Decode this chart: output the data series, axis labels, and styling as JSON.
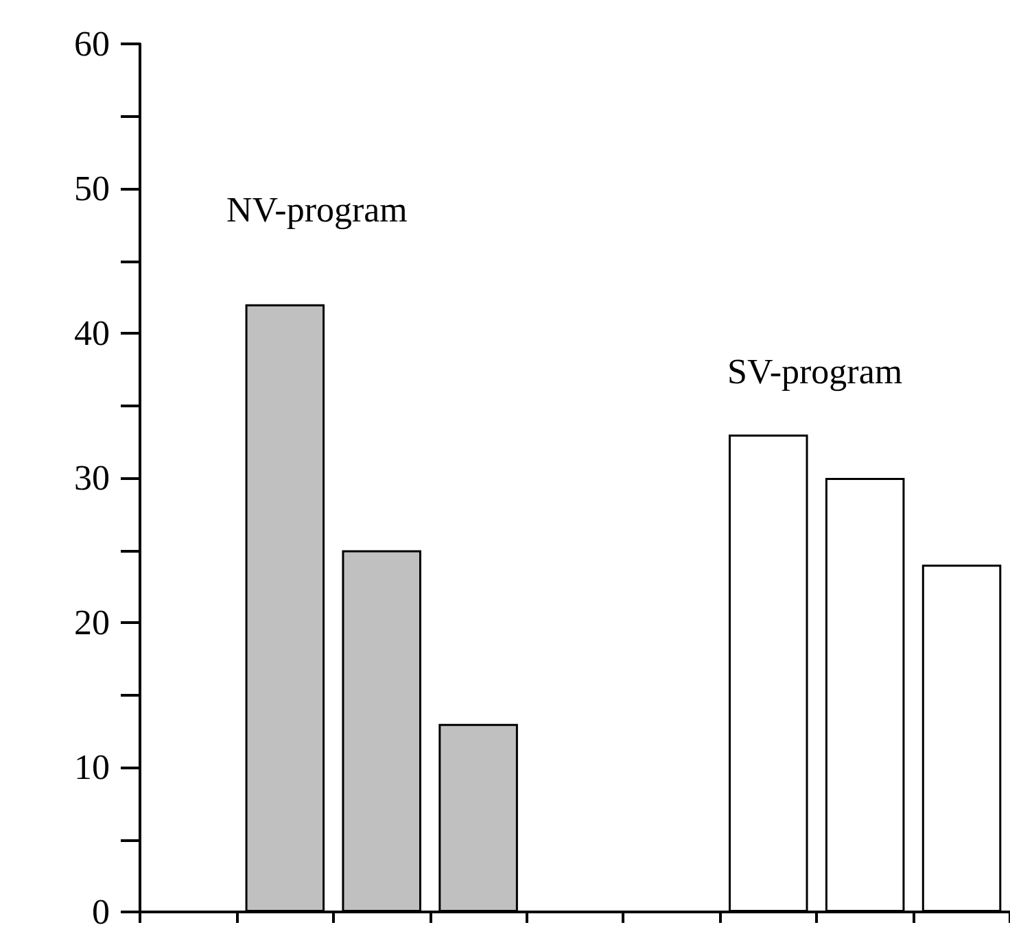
{
  "chart_data": {
    "type": "bar",
    "categories": [
      null,
      null,
      null,
      null,
      null,
      null,
      null,
      null,
      null
    ],
    "values": [
      null,
      42,
      25,
      13,
      null,
      null,
      33,
      30,
      24
    ],
    "colors": [
      null,
      "#c0c0c0",
      "#c0c0c0",
      "#c0c0c0",
      null,
      null,
      "#ffffff",
      "#ffffff",
      "#ffffff"
    ],
    "ylim": [
      0,
      60
    ],
    "yticks": [
      0,
      {
        "value": 5,
        "label": null
      },
      10,
      {
        "value": 15,
        "label": null
      },
      20,
      {
        "value": 25,
        "label": null
      },
      30,
      {
        "value": 35,
        "label": null
      },
      40,
      {
        "value": 45,
        "label": null
      },
      50,
      {
        "value": 55,
        "label": null
      },
      60
    ],
    "annotations": [
      "NV-program",
      "SV-program"
    ],
    "grid": false
  }
}
